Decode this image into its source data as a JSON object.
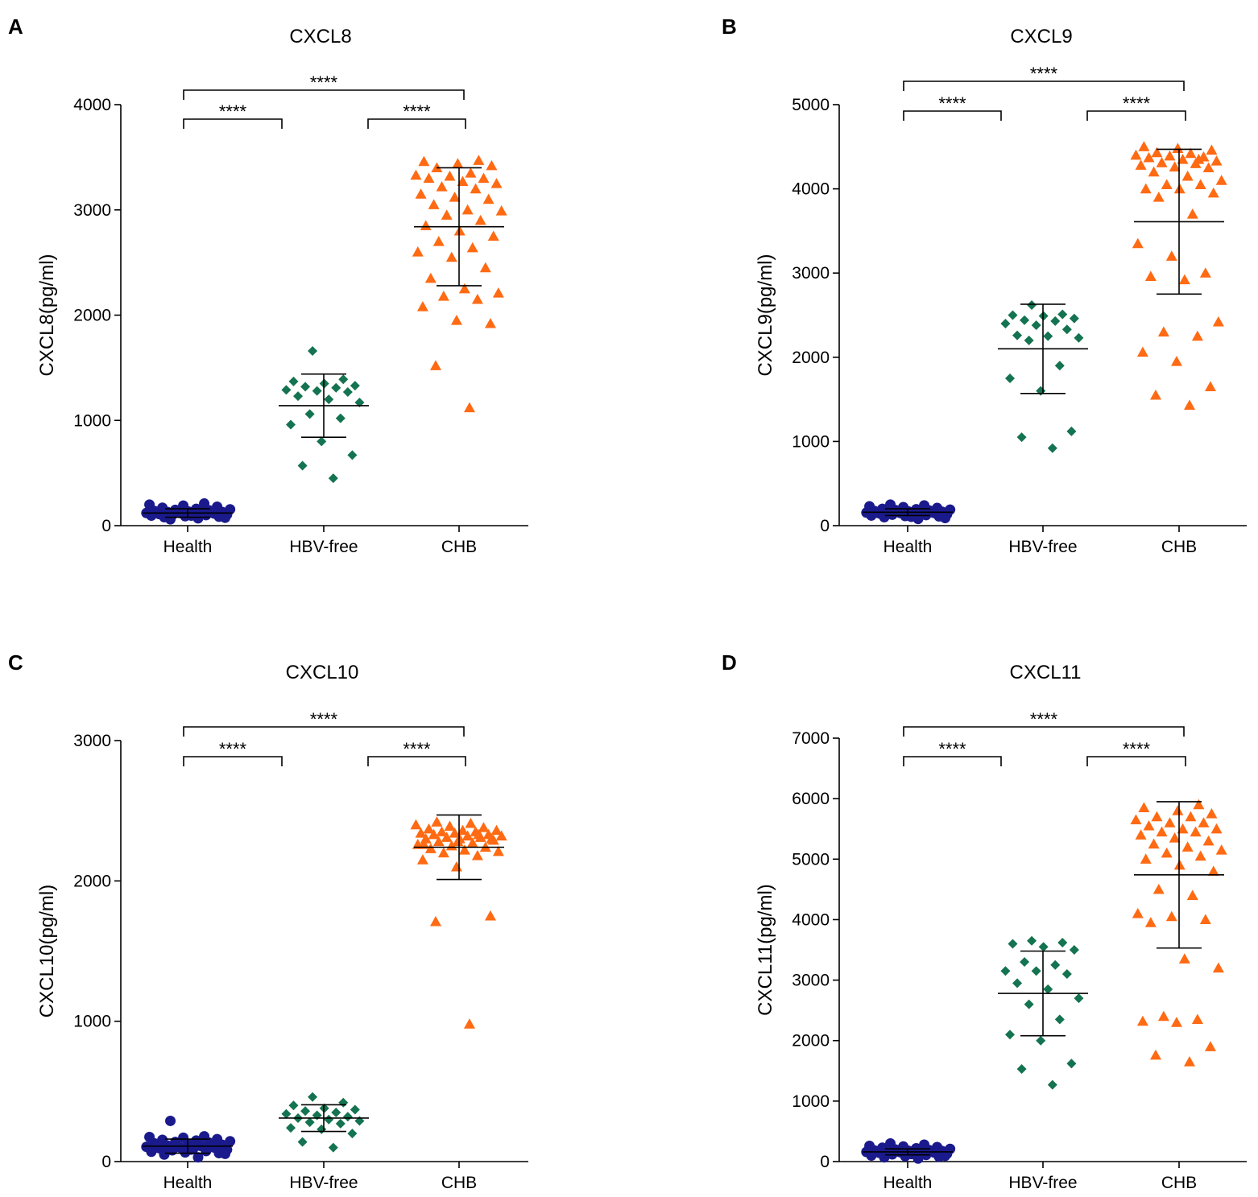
{
  "figure_description_labels": {
    "significance_marker": "****"
  },
  "colors": {
    "Health": "#1a1a8c",
    "HBV-free": "#147350",
    "CHB": "#ff6a13",
    "axis": "#000000",
    "summary_lines": "#000000"
  },
  "chart_data": [
    {
      "panel": "A",
      "type": "scatter",
      "title": "CXCL8",
      "xlabel": "",
      "ylabel": "CXCL8(pg/ml)",
      "ylim": [
        0,
        4000
      ],
      "yticks": [
        0,
        1000,
        2000,
        3000,
        4000
      ],
      "categories": [
        "Health",
        "HBV-free",
        "CHB"
      ],
      "series": [
        {
          "name": "Health",
          "marker": "circle",
          "mean": 120,
          "sd": 40,
          "values": [
            70,
            80,
            85,
            90,
            95,
            100,
            100,
            105,
            110,
            110,
            115,
            120,
            120,
            125,
            130,
            130,
            135,
            140,
            145,
            150,
            155,
            160,
            170,
            180,
            190,
            200,
            210,
            60,
            75,
            95
          ]
        },
        {
          "name": "HBV-free",
          "marker": "diamond",
          "mean": 1140,
          "sd": 300,
          "values": [
            450,
            570,
            670,
            800,
            960,
            1020,
            1060,
            1170,
            1200,
            1230,
            1270,
            1280,
            1290,
            1310,
            1320,
            1330,
            1350,
            1370,
            1390,
            1660
          ]
        },
        {
          "name": "CHB",
          "marker": "triangle",
          "mean": 2840,
          "sd": 560,
          "values": [
            1120,
            1520,
            1920,
            1950,
            2080,
            2150,
            2180,
            2210,
            2250,
            2350,
            2450,
            2550,
            2600,
            2640,
            2700,
            2750,
            2800,
            2850,
            2900,
            2950,
            2990,
            3000,
            3050,
            3100,
            3120,
            3150,
            3200,
            3220,
            3250,
            3270,
            3300,
            3300,
            3320,
            3330,
            3350,
            3400,
            3420,
            3440,
            3460,
            3470
          ]
        }
      ],
      "comparisons": [
        {
          "from": "Health",
          "to": "HBV-free",
          "label": "****",
          "level": 1
        },
        {
          "from": "HBV-free",
          "to": "CHB",
          "label": "****",
          "level": 1
        },
        {
          "from": "Health",
          "to": "CHB",
          "label": "****",
          "level": 2
        }
      ]
    },
    {
      "panel": "B",
      "type": "scatter",
      "title": "CXCL9",
      "xlabel": "",
      "ylabel": "CXCL9(pg/ml)",
      "ylim": [
        0,
        5000
      ],
      "yticks": [
        0,
        1000,
        2000,
        3000,
        4000,
        5000
      ],
      "categories": [
        "Health",
        "HBV-free",
        "CHB"
      ],
      "series": [
        {
          "name": "Health",
          "marker": "circle",
          "mean": 160,
          "sd": 40,
          "values": [
            80,
            100,
            110,
            115,
            120,
            125,
            130,
            135,
            140,
            145,
            150,
            150,
            155,
            160,
            160,
            165,
            170,
            175,
            180,
            185,
            190,
            195,
            200,
            210,
            220,
            230,
            240,
            250,
            90,
            105
          ]
        },
        {
          "name": "HBV-free",
          "marker": "diamond",
          "mean": 2100,
          "sd": 530,
          "values": [
            920,
            1050,
            1120,
            1600,
            1750,
            1900,
            2200,
            2230,
            2250,
            2260,
            2330,
            2380,
            2400,
            2430,
            2440,
            2460,
            2490,
            2500,
            2510,
            2620
          ]
        },
        {
          "name": "CHB",
          "marker": "triangle",
          "mean": 3610,
          "sd": 860,
          "values": [
            1430,
            1550,
            1650,
            1950,
            2060,
            2250,
            2300,
            2420,
            2920,
            2960,
            3000,
            3200,
            3350,
            3700,
            3900,
            3950,
            4000,
            4000,
            4050,
            4050,
            4100,
            4150,
            4200,
            4250,
            4260,
            4280,
            4300,
            4310,
            4330,
            4350,
            4370,
            4380,
            4390,
            4400,
            4420,
            4430,
            4460,
            4480,
            4500,
            4350
          ]
        }
      ],
      "comparisons": [
        {
          "from": "Health",
          "to": "HBV-free",
          "label": "****",
          "level": 1
        },
        {
          "from": "HBV-free",
          "to": "CHB",
          "label": "****",
          "level": 1
        },
        {
          "from": "Health",
          "to": "CHB",
          "label": "****",
          "level": 2
        }
      ]
    },
    {
      "panel": "C",
      "type": "scatter",
      "title": "CXCL10",
      "xlabel": "",
      "ylabel": "CXCL10(pg/ml)",
      "ylim": [
        0,
        3000
      ],
      "yticks": [
        0,
        1000,
        2000,
        3000
      ],
      "categories": [
        "Health",
        "HBV-free",
        "CHB"
      ],
      "series": [
        {
          "name": "Health",
          "marker": "circle",
          "mean": 110,
          "sd": 50,
          "values": [
            30,
            50,
            60,
            65,
            70,
            75,
            80,
            85,
            90,
            95,
            100,
            100,
            105,
            110,
            115,
            120,
            125,
            130,
            135,
            140,
            145,
            150,
            155,
            160,
            170,
            175,
            180,
            290,
            55,
            85
          ]
        },
        {
          "name": "HBV-free",
          "marker": "diamond",
          "mean": 310,
          "sd": 95,
          "values": [
            100,
            140,
            200,
            230,
            240,
            270,
            280,
            290,
            300,
            310,
            320,
            330,
            340,
            350,
            360,
            370,
            380,
            400,
            420,
            460
          ]
        },
        {
          "name": "CHB",
          "marker": "triangle",
          "mean": 2240,
          "sd": 230,
          "values": [
            980,
            1710,
            1750,
            2100,
            2150,
            2180,
            2200,
            2210,
            2220,
            2230,
            2240,
            2250,
            2260,
            2270,
            2280,
            2290,
            2300,
            2300,
            2310,
            2310,
            2320,
            2320,
            2330,
            2330,
            2340,
            2340,
            2350,
            2350,
            2360,
            2360,
            2370,
            2380,
            2390,
            2400,
            2410,
            2420,
            2300,
            2280,
            2260,
            2330
          ]
        }
      ],
      "comparisons": [
        {
          "from": "Health",
          "to": "HBV-free",
          "label": "****",
          "level": 1
        },
        {
          "from": "HBV-free",
          "to": "CHB",
          "label": "****",
          "level": 1
        },
        {
          "from": "Health",
          "to": "CHB",
          "label": "****",
          "level": 2
        }
      ]
    },
    {
      "panel": "D",
      "type": "scatter",
      "title": "CXCL11",
      "xlabel": "",
      "ylabel": "CXCL11(pg/ml)",
      "ylim": [
        0,
        7000
      ],
      "yticks": [
        0,
        1000,
        2000,
        3000,
        4000,
        5000,
        6000,
        7000
      ],
      "categories": [
        "Health",
        "HBV-free",
        "CHB"
      ],
      "series": [
        {
          "name": "Health",
          "marker": "circle",
          "mean": 160,
          "sd": 50,
          "values": [
            50,
            70,
            80,
            90,
            100,
            110,
            120,
            130,
            140,
            145,
            150,
            155,
            160,
            165,
            170,
            175,
            180,
            185,
            190,
            200,
            210,
            220,
            230,
            240,
            250,
            260,
            280,
            300,
            95,
            125
          ]
        },
        {
          "name": "HBV-free",
          "marker": "diamond",
          "mean": 2780,
          "sd": 700,
          "values": [
            1270,
            1530,
            1620,
            2000,
            2100,
            2350,
            2600,
            2700,
            2850,
            2950,
            3100,
            3150,
            3150,
            3250,
            3300,
            3500,
            3550,
            3600,
            3620,
            3650
          ]
        },
        {
          "name": "CHB",
          "marker": "triangle",
          "mean": 4740,
          "sd": 1210,
          "values": [
            1650,
            1760,
            1900,
            2300,
            2320,
            2350,
            2400,
            3200,
            3350,
            3950,
            4000,
            4050,
            4100,
            4400,
            4500,
            4800,
            4900,
            5000,
            5050,
            5100,
            5150,
            5200,
            5250,
            5300,
            5350,
            5400,
            5450,
            5450,
            5500,
            5500,
            5550,
            5600,
            5600,
            5650,
            5700,
            5700,
            5750,
            5800,
            5850,
            5900
          ]
        }
      ],
      "comparisons": [
        {
          "from": "Health",
          "to": "HBV-free",
          "label": "****",
          "level": 1
        },
        {
          "from": "HBV-free",
          "to": "CHB",
          "label": "****",
          "level": 1
        },
        {
          "from": "Health",
          "to": "CHB",
          "label": "****",
          "level": 2
        }
      ]
    }
  ]
}
